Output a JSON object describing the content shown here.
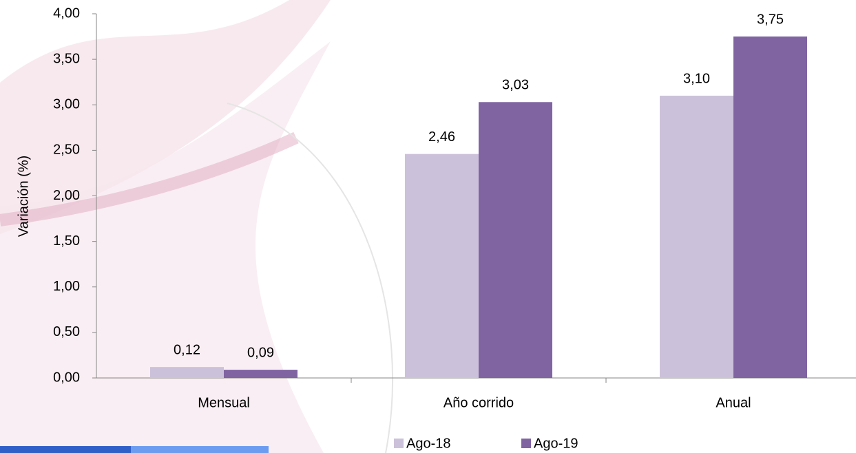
{
  "chart_data": {
    "type": "bar",
    "y_label": "Variación (%)",
    "categories": [
      "Mensual",
      "Año corrido",
      "Anual"
    ],
    "series": [
      {
        "name": "Ago-18",
        "color": "#ccc1da",
        "values": [
          0.12,
          2.46,
          3.1
        ],
        "value_labels": [
          "0,12",
          "2,46",
          "3,10"
        ]
      },
      {
        "name": "Ago-19",
        "color": "#8064a2",
        "values": [
          0.09,
          3.03,
          3.75
        ],
        "value_labels": [
          "0,09",
          "3,03",
          "3,75"
        ]
      }
    ],
    "ylim": [
      0,
      4
    ],
    "yticks": [
      {
        "value": 0,
        "label": "0,00"
      },
      {
        "value": 0.5,
        "label": "0,50"
      },
      {
        "value": 1,
        "label": "1,00"
      },
      {
        "value": 1.5,
        "label": "1,50"
      },
      {
        "value": 2,
        "label": "2,00"
      },
      {
        "value": 2.5,
        "label": "2,50"
      },
      {
        "value": 3,
        "label": "3,00"
      },
      {
        "value": 3.5,
        "label": "3,50"
      },
      {
        "value": 4,
        "label": "4,00"
      }
    ],
    "legend": "bottom"
  }
}
